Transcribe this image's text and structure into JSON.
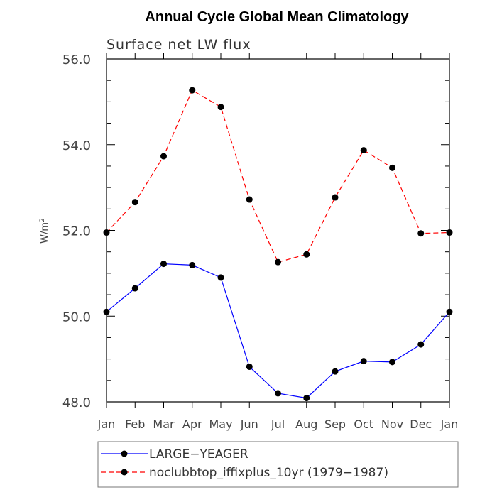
{
  "chart_data": {
    "type": "line",
    "title": "Annual Cycle Global Mean Climatology",
    "subtitle": "Surface net LW flux",
    "ylabel": "W/m",
    "ylabel_sup": "2",
    "ylim": [
      48.0,
      56.0
    ],
    "yticks": [
      "48.0",
      "50.0",
      "52.0",
      "54.0",
      "56.0"
    ],
    "categories": [
      "Jan",
      "Feb",
      "Mar",
      "Apr",
      "May",
      "Jun",
      "Jul",
      "Aug",
      "Sep",
      "Oct",
      "Nov",
      "Dec",
      "Jan"
    ],
    "grid": false,
    "legend_position": "bottom",
    "series": [
      {
        "name": "LARGE−YEAGER",
        "color": "#0000ff",
        "dash": "solid",
        "marker": "filled-circle",
        "values": [
          50.1,
          50.65,
          51.22,
          51.19,
          50.9,
          48.82,
          48.2,
          48.09,
          48.71,
          48.95,
          48.93,
          49.34,
          50.1
        ]
      },
      {
        "name": "noclubbtop_iffixplus_10yr (1979−1987)",
        "color": "#ff0000",
        "dash": "dashed",
        "marker": "filled-circle",
        "values": [
          51.95,
          52.66,
          53.73,
          55.27,
          54.88,
          52.72,
          51.26,
          51.44,
          52.77,
          53.87,
          53.46,
          51.93,
          51.95
        ]
      }
    ]
  }
}
